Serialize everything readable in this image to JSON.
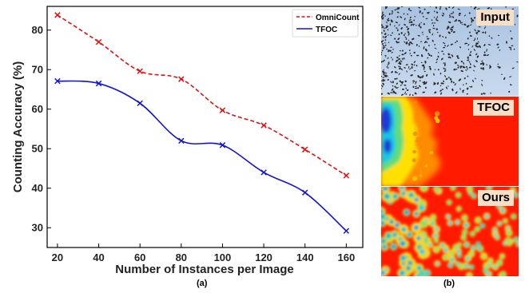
{
  "chart_data": {
    "type": "line",
    "x": [
      20,
      40,
      60,
      80,
      100,
      120,
      140,
      160
    ],
    "xlabel": "Number of Instances per Image",
    "ylabel": "Counting Accuracy (%)",
    "xlim": [
      15,
      168
    ],
    "ylim": [
      25,
      86
    ],
    "xticks": [
      20,
      40,
      60,
      80,
      100,
      120,
      140,
      160
    ],
    "yticks": [
      30,
      40,
      50,
      60,
      70,
      80
    ],
    "grid": false,
    "legend_position": "top-right",
    "series": [
      {
        "name": "OmniCount",
        "color": "#dd1111",
        "style": "dashed",
        "marker": "x",
        "values": [
          83.8,
          77.0,
          69.6,
          67.6,
          59.7,
          55.9,
          49.8,
          43.2
        ]
      },
      {
        "name": "TFOC",
        "color": "#1111dd",
        "style": "solid",
        "marker": "x",
        "values": [
          67.1,
          66.5,
          61.5,
          52.0,
          50.9,
          44.0,
          38.9,
          29.2
        ]
      }
    ]
  },
  "captions": {
    "a": "(a)",
    "b": "(b)"
  },
  "panels": [
    {
      "key": "input",
      "label": "Input"
    },
    {
      "key": "tfoc",
      "label": "TFOC"
    },
    {
      "key": "ours",
      "label": "Ours"
    }
  ],
  "colors": {
    "heat_red": "#ff1a00",
    "sky": "#b4cde8"
  }
}
